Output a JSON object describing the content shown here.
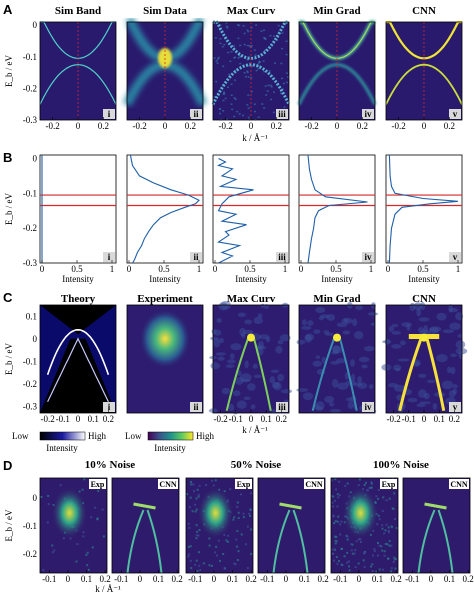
{
  "panel_labels": [
    "A",
    "B",
    "C",
    "D"
  ],
  "row_A": {
    "titles": [
      "Sim Band",
      "Sim Data",
      "Max Curv",
      "Min Grad",
      "CNN"
    ],
    "romans": [
      "i",
      "ii",
      "iii",
      "iv",
      "v"
    ],
    "ylabel": "E_b / eV",
    "xlabel": "k / Å⁻¹",
    "yticks": [
      "0",
      "-0.1",
      "-0.2",
      "-0.3"
    ],
    "xticks": [
      "-0.2",
      "0",
      "0.2"
    ]
  },
  "row_B": {
    "romans": [
      "i",
      "ii",
      "iii",
      "iv",
      "v"
    ],
    "ylabel": "E_b / eV",
    "xlabel": "Intensity",
    "yticks": [
      "0",
      "-0.1",
      "-0.2",
      "-0.3"
    ],
    "xticks": [
      "0",
      "0.5",
      "1"
    ],
    "chart_data": {
      "type": "line",
      "ylim": [
        -0.3,
        0.01
      ],
      "xlim": [
        0,
        1
      ],
      "red_lines_y": [
        -0.105,
        -0.135
      ],
      "series": [
        {
          "panel": "i",
          "x": [
            0,
            0,
            0,
            0,
            0
          ],
          "y": [
            0.01,
            -0.1,
            -0.2,
            -0.25,
            -0.3
          ]
        },
        {
          "panel": "ii",
          "x": [
            0.02,
            0.05,
            0.15,
            0.35,
            0.6,
            0.85,
            1.0,
            0.95,
            0.8,
            0.6,
            0.45,
            0.35,
            0.28,
            0.22,
            0.18,
            0.12,
            0.08,
            0.05
          ],
          "y": [
            0.01,
            -0.02,
            -0.05,
            -0.07,
            -0.09,
            -0.105,
            -0.12,
            -0.13,
            -0.14,
            -0.155,
            -0.17,
            -0.19,
            -0.21,
            -0.23,
            -0.25,
            -0.27,
            -0.29,
            -0.3
          ]
        },
        {
          "panel": "iii",
          "x": [
            0.05,
            0.15,
            0.05,
            0.25,
            0.1,
            0.3,
            0.08,
            0.55,
            0.2,
            0.1,
            0.05,
            0.3,
            0.1,
            0.45,
            0.15,
            0.2,
            0.05,
            0.35,
            0.1,
            0.25,
            0.05
          ],
          "y": [
            0.0,
            -0.01,
            -0.02,
            -0.03,
            -0.05,
            -0.06,
            -0.08,
            -0.09,
            -0.11,
            -0.13,
            -0.15,
            -0.16,
            -0.18,
            -0.19,
            -0.21,
            -0.22,
            -0.24,
            -0.25,
            -0.27,
            -0.28,
            -0.3
          ]
        },
        {
          "panel": "iv",
          "x": [
            0.1,
            0.12,
            0.15,
            0.2,
            0.35,
            0.95,
            0.4,
            0.25,
            0.2,
            0.18,
            0.15,
            0.12,
            0.1
          ],
          "y": [
            0.01,
            -0.03,
            -0.06,
            -0.09,
            -0.11,
            -0.125,
            -0.135,
            -0.15,
            -0.17,
            -0.2,
            -0.23,
            -0.27,
            -0.3
          ]
        },
        {
          "panel": "v",
          "x": [
            0.02,
            0.03,
            0.05,
            0.1,
            0.5,
            1.0,
            0.6,
            0.2,
            0.1,
            0.05,
            0.03,
            0.02
          ],
          "y": [
            0.01,
            -0.05,
            -0.08,
            -0.1,
            -0.115,
            -0.123,
            -0.13,
            -0.14,
            -0.16,
            -0.2,
            -0.25,
            -0.3
          ]
        }
      ]
    }
  },
  "row_C": {
    "titles": [
      "Theory",
      "Experiment",
      "Max Curv",
      "Min Grad",
      "CNN"
    ],
    "romans": [
      "i",
      "ii",
      "iii",
      "iv",
      "v"
    ],
    "ylabel": "E_b / eV",
    "xlabel": "k / Å⁻¹",
    "yticks": [
      "0.1",
      "0",
      "-0.1",
      "-0.2",
      "-0.3"
    ],
    "xticks": [
      "-0.2",
      "-0.1",
      "0",
      "0.1",
      "0.2"
    ],
    "cbar1": {
      "low": "Low",
      "high": "High",
      "label": "Intensity"
    },
    "cbar2": {
      "low": "Low",
      "high": "High",
      "label": "Intensity"
    }
  },
  "row_D": {
    "titles": [
      "10% Noise",
      "50% Noise",
      "100% Noise"
    ],
    "tags": [
      "Exp",
      "CNN"
    ],
    "ylabel": "E_b / eV",
    "xlabel": "k / Å⁻¹",
    "yticks": [
      "0",
      "-0.1",
      "-0.2"
    ],
    "xticks": [
      "-0.1",
      "0",
      "0.1",
      "0.2"
    ]
  },
  "colors": {
    "dark_bg": "#2f1b6b",
    "mid": "#21918c",
    "bright": "#fde725",
    "red_line": "#d62728",
    "profile": "#1f5fa8"
  }
}
